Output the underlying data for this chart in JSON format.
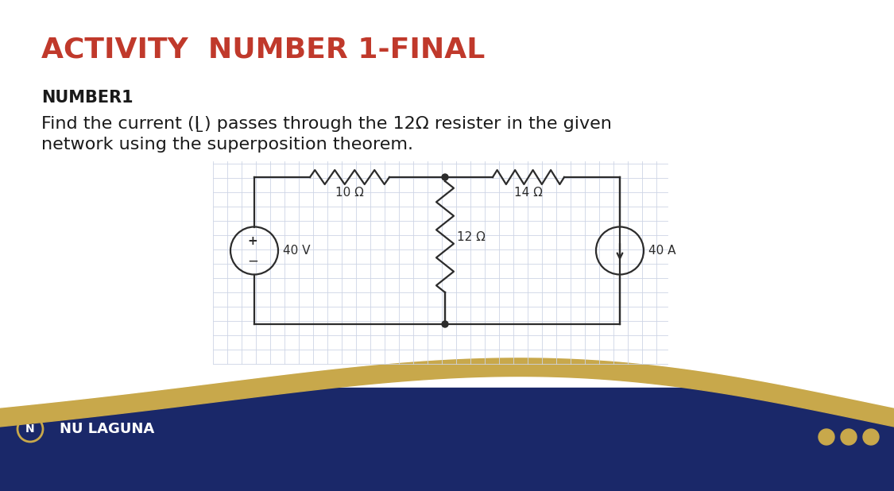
{
  "title": "ACTIVITY  NUMBER 1-FINAL",
  "title_color": "#C0392B",
  "title_fontsize": 26,
  "subtitle": "NUMBER1",
  "subtitle_fontsize": 15,
  "body_fontsize": 16,
  "bg_color": "#FFFFFF",
  "footer_dark": "#1A2869",
  "footer_gold": "#C8A84B",
  "nu_text": "NU LAGUNA",
  "resistor_10": "10 Ω",
  "resistor_12": "12 Ω",
  "resistor_14": "14 Ω",
  "voltage_src": "40 V",
  "current_src": "40 A",
  "grid_color": "#CDD5E5",
  "circuit_color": "#2C2C2C",
  "circuit_lw": 1.6
}
